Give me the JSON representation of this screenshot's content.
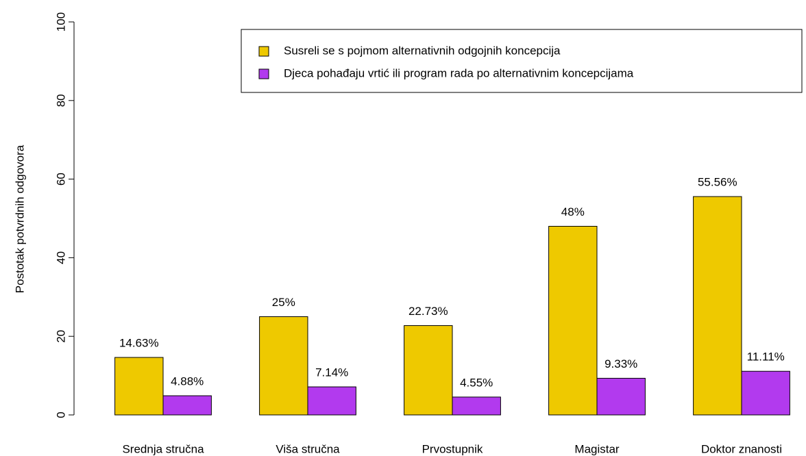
{
  "chart_data": {
    "type": "bar",
    "y_label": "Postotak potvrdnih odgovora",
    "categories": [
      "Srednja stručna",
      "Viša stručna",
      "Prvostupnik",
      "Magistar",
      "Doktor znanosti"
    ],
    "series": [
      {
        "name": "Susreli se s pojmom alternativnih odgojnih koncepcija",
        "color": "#eec900",
        "values": [
          14.63,
          25,
          22.73,
          48,
          55.56
        ],
        "value_labels": [
          "14.63%",
          "25%",
          "22.73%",
          "48%",
          "55.56%"
        ]
      },
      {
        "name": "Djeca pohađaju vrtić ili program rada po alternativnim koncepcijama",
        "color": "#b23aee",
        "values": [
          4.88,
          7.14,
          4.55,
          9.33,
          11.11
        ],
        "value_labels": [
          "4.88%",
          "7.14%",
          "4.55%",
          "9.33%",
          "11.11%"
        ]
      }
    ],
    "ylim": [
      0,
      100
    ],
    "yticks": [
      0,
      20,
      40,
      60,
      80,
      100
    ],
    "legend": "top-right"
  }
}
